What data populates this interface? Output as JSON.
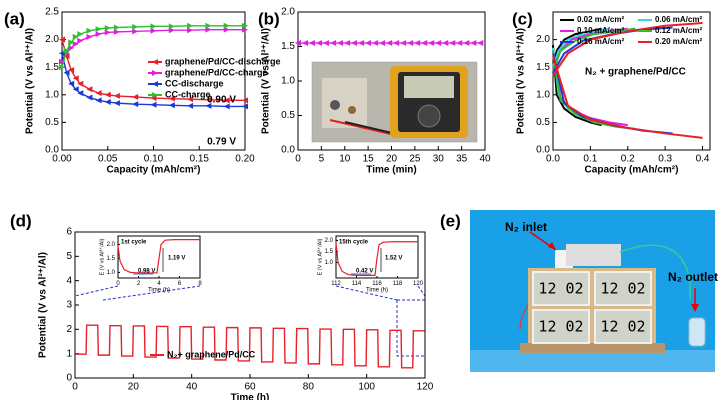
{
  "chart_data": [
    {
      "type": "line",
      "label": "(a)",
      "xlabel": "Capacity (mAh/cm²)",
      "ylabel": "Potential (V vs Al³⁺/Al)",
      "xlim": [
        0,
        0.2
      ],
      "xticks": [
        {
          "value": 0,
          "label": "0.00"
        },
        0.05,
        {
          "value": 0.1,
          "label": "0.10"
        },
        0.15,
        {
          "value": 0.2,
          "label": "0.20"
        }
      ],
      "ylim": [
        0,
        2.5
      ],
      "yticks": [
        {
          "value": 0,
          "label": "0.0"
        },
        0.5,
        {
          "value": 1,
          "label": "1.0"
        },
        1.5,
        {
          "value": 2,
          "label": "2.0"
        },
        2.5
      ],
      "x": [
        0,
        0.005,
        0.01,
        0.015,
        0.02,
        0.03,
        0.04,
        0.05,
        0.06,
        0.08,
        0.1,
        0.12,
        0.14,
        0.16,
        0.18,
        0.2
      ],
      "series": [
        {
          "name": "graphene/Pd/CC-discharge",
          "color": "#e8202a",
          "marker": "left",
          "values": [
            2.0,
            1.7,
            1.45,
            1.3,
            1.2,
            1.1,
            1.03,
            1.0,
            0.98,
            0.96,
            0.94,
            0.93,
            0.92,
            0.91,
            0.9,
            0.9
          ]
        },
        {
          "name": "graphene/Pd/CC-charge",
          "color": "#e020e0",
          "marker": "right",
          "values": [
            1.6,
            1.75,
            1.85,
            1.92,
            1.98,
            2.05,
            2.1,
            2.13,
            2.14,
            2.15,
            2.16,
            2.17,
            2.17,
            2.18,
            2.18,
            2.18
          ]
        },
        {
          "name": "CC-discharge",
          "color": "#1a3ad8",
          "marker": "left",
          "values": [
            1.75,
            1.4,
            1.2,
            1.1,
            1.03,
            0.95,
            0.9,
            0.87,
            0.85,
            0.83,
            0.82,
            0.81,
            0.8,
            0.8,
            0.79,
            0.79
          ]
        },
        {
          "name": "CC-charge",
          "color": "#2fbf2f",
          "marker": "right",
          "values": [
            1.5,
            1.8,
            1.95,
            2.05,
            2.1,
            2.16,
            2.19,
            2.21,
            2.22,
            2.23,
            2.24,
            2.24,
            2.25,
            2.25,
            2.25,
            2.25
          ]
        }
      ],
      "annotations": [
        {
          "text": "0.90 V",
          "color": "#e8202a"
        },
        {
          "text": "0.79 V",
          "color": "#1a3ad8"
        }
      ]
    },
    {
      "type": "line",
      "label": "(b)",
      "xlabel": "Time (min)",
      "ylabel": "Potential (V vs Al³⁺/Al)",
      "xlim": [
        0,
        40
      ],
      "xticks": [
        0,
        5,
        10,
        15,
        20,
        25,
        30,
        35,
        40
      ],
      "ylim": [
        0,
        2
      ],
      "yticks": [
        {
          "value": 0,
          "label": "0.0"
        },
        0.5,
        {
          "value": 1,
          "label": "1.0"
        },
        1.5,
        {
          "value": 2,
          "label": "2.0"
        }
      ],
      "x": [
        0,
        1.5,
        3,
        4.5,
        6,
        7.5,
        9,
        10.5,
        12,
        13.5,
        15,
        16.5,
        18,
        19.5,
        21,
        22.5,
        24,
        25.5,
        27,
        28.5,
        30,
        31.5,
        33,
        34.5,
        36,
        37.5,
        39
      ],
      "series": [
        {
          "color": "#e020e0",
          "marker": "left",
          "values": [
            1.55,
            1.55,
            1.55,
            1.55,
            1.55,
            1.55,
            1.55,
            1.55,
            1.55,
            1.55,
            1.55,
            1.55,
            1.55,
            1.55,
            1.55,
            1.55,
            1.55,
            1.55,
            1.55,
            1.55,
            1.55,
            1.55,
            1.55,
            1.55,
            1.55,
            1.55,
            1.55
          ]
        }
      ]
    },
    {
      "type": "line",
      "label": "(c)",
      "xlabel": "Capacity (mAh/cm²)",
      "ylabel": "Potential (V vs Al³⁺/Al)",
      "xlim": [
        0,
        0.42
      ],
      "xticks": [
        {
          "value": 0,
          "label": "0.0"
        },
        0.1,
        0.2,
        0.3,
        0.4
      ],
      "ylim": [
        0,
        2.5
      ],
      "yticks": [
        {
          "value": 0,
          "label": "0.0"
        },
        0.5,
        {
          "value": 1,
          "label": "1.0"
        },
        1.5,
        {
          "value": 2,
          "label": "2.0"
        }
      ],
      "series": [
        {
          "name": "0.02 mA/cm²",
          "color": "#000000",
          "x": [
            0,
            0.01,
            0.03,
            0.06,
            0.1,
            0.13
          ],
          "values": [
            1.9,
            1.0,
            0.75,
            0.6,
            0.5,
            0.45
          ],
          "charge_values": [
            1.5,
            1.8,
            2.0,
            2.1,
            2.15,
            2.2
          ]
        },
        {
          "name": "0.06 mA/cm²",
          "color": "#30d8e8",
          "x": [
            0,
            0.015,
            0.04,
            0.08,
            0.12,
            0.15
          ],
          "values": [
            1.85,
            1.0,
            0.75,
            0.6,
            0.52,
            0.48
          ],
          "charge_values": [
            1.5,
            1.8,
            2.0,
            2.1,
            2.15,
            2.2
          ]
        },
        {
          "name": "0.10 mA/cm²",
          "color": "#e020e0",
          "x": [
            0,
            0.02,
            0.05,
            0.1,
            0.15,
            0.2
          ],
          "values": [
            1.8,
            0.95,
            0.72,
            0.58,
            0.5,
            0.45
          ],
          "charge_values": [
            1.45,
            1.8,
            2.0,
            2.1,
            2.15,
            2.2
          ]
        },
        {
          "name": "0.12 mA/cm²",
          "color": "#2fbf2f",
          "x": [
            0,
            0.02,
            0.06,
            0.11,
            0.17,
            0.22
          ],
          "values": [
            1.8,
            0.9,
            0.65,
            0.5,
            0.42,
            0.38
          ],
          "charge_values": [
            1.4,
            1.8,
            1.98,
            2.1,
            2.15,
            2.2
          ]
        },
        {
          "name": "0.16 mA/cm²",
          "color": "#1a3ad8",
          "x": [
            0,
            0.03,
            0.08,
            0.16,
            0.24,
            0.32
          ],
          "values": [
            1.75,
            0.85,
            0.6,
            0.45,
            0.35,
            0.3
          ],
          "charge_values": [
            1.4,
            1.75,
            1.98,
            2.1,
            2.18,
            2.22
          ]
        },
        {
          "name": "0.20 mA/cm²",
          "color": "#e8202a",
          "x": [
            0,
            0.04,
            0.1,
            0.2,
            0.3,
            0.4
          ],
          "values": [
            1.7,
            0.8,
            0.55,
            0.4,
            0.3,
            0.22
          ],
          "charge_values": [
            1.35,
            1.75,
            2.0,
            2.15,
            2.25,
            2.3
          ]
        }
      ],
      "annotations": [
        {
          "text": "N₂ + graphene/Pd/CC",
          "color": "#000000"
        }
      ]
    },
    {
      "type": "line",
      "label": "(d)",
      "xlabel": "Time (h)",
      "ylabel": "Potential (V vs Al³⁺/Al)",
      "xlim": [
        0,
        120
      ],
      "xticks": [
        0,
        20,
        40,
        60,
        80,
        100,
        120
      ],
      "ylim": [
        0,
        6
      ],
      "yticks": [
        0,
        1,
        2,
        3,
        4,
        5,
        6
      ],
      "x": [
        0,
        3.8,
        4,
        7.8,
        8,
        11.8,
        12,
        15.8,
        16,
        19.8,
        20,
        23.8,
        24,
        27.8,
        28,
        31.8,
        32,
        35.8,
        36,
        39.8,
        40,
        43.8,
        44,
        47.8,
        48,
        51.8,
        52,
        55.8,
        56,
        59.8,
        60,
        63.8,
        64,
        67.8,
        68,
        71.8,
        72,
        75.8,
        76,
        79.8,
        80,
        83.8,
        84,
        87.8,
        88,
        91.8,
        92,
        95.8,
        96,
        99.8,
        100,
        103.8,
        104,
        107.8,
        108,
        111.8,
        112,
        115.8,
        116,
        119.8
      ],
      "series": [
        {
          "name": "N₂+ graphene/Pd/CC",
          "color": "#e8202a",
          "values": [
            0.98,
            0.98,
            2.17,
            2.17,
            0.94,
            0.94,
            2.15,
            2.15,
            0.9,
            0.9,
            2.14,
            2.14,
            0.86,
            0.86,
            2.12,
            2.12,
            0.82,
            0.82,
            2.11,
            2.11,
            0.78,
            0.78,
            2.09,
            2.09,
            0.74,
            0.74,
            2.07,
            2.07,
            0.7,
            0.7,
            2.06,
            2.06,
            0.66,
            0.66,
            2.04,
            2.04,
            0.62,
            0.62,
            2.03,
            2.03,
            0.58,
            0.58,
            2.01,
            2.01,
            0.54,
            0.54,
            2.0,
            2.0,
            0.5,
            0.5,
            1.98,
            1.98,
            0.46,
            0.46,
            1.96,
            1.96,
            0.42,
            0.42,
            1.94,
            1.94
          ]
        }
      ]
    },
    {
      "type": "line",
      "title": "1st cycle",
      "xlabel": "Time (h)",
      "ylabel": "E (V vs Al³⁺/Al)",
      "xlim": [
        0,
        8
      ],
      "xticks": [
        0,
        2,
        4,
        6,
        8
      ],
      "ylim": [
        0.8,
        2.3
      ],
      "yticks": [
        {
          "value": 1,
          "label": "1.0"
        },
        1.5,
        {
          "value": 2,
          "label": "2.0"
        }
      ],
      "x": [
        0,
        0.2,
        0.6,
        1.2,
        2,
        3.8,
        4,
        4.2,
        4.6,
        5.5,
        8
      ],
      "series": [
        {
          "color": "#e8202a",
          "values": [
            1.95,
            1.4,
            1.1,
            1.0,
            0.98,
            0.98,
            1.5,
            2.0,
            2.15,
            2.17,
            2.17
          ]
        }
      ],
      "annotations": [
        {
          "text": "0.98 V",
          "color": "#1a3ad8"
        },
        {
          "text": "1.19 V",
          "color": "#000000"
        }
      ]
    },
    {
      "type": "line",
      "title": "15th cycle",
      "xlabel": "Time (h)",
      "ylabel": "E (V vs Al³⁺/Al)",
      "xlim": [
        112,
        120
      ],
      "xticks": [
        112,
        114,
        116,
        118,
        120
      ],
      "ylim": [
        0.3,
        2.2
      ],
      "yticks": [
        {
          "value": 1,
          "label": "1.0"
        },
        1.5,
        {
          "value": 2,
          "label": "2.0"
        }
      ],
      "x": [
        112,
        112.2,
        112.6,
        113.2,
        114,
        115.8,
        116,
        116.2,
        116.6,
        117.5,
        120
      ],
      "series": [
        {
          "color": "#e8202a",
          "values": [
            1.9,
            1.0,
            0.6,
            0.45,
            0.42,
            0.42,
            1.2,
            1.8,
            1.92,
            1.94,
            1.94
          ]
        }
      ],
      "annotations": [
        {
          "text": "0.42 V",
          "color": "#1a3ad8"
        },
        {
          "text": "1.52 V",
          "color": "#000000"
        }
      ]
    }
  ],
  "photo": {
    "label": "(e)",
    "inlet": "N₂ inlet",
    "outlet": "N₂ outlet",
    "displays": [
      "12 02",
      "12 02",
      "12 02",
      "12 02"
    ]
  }
}
